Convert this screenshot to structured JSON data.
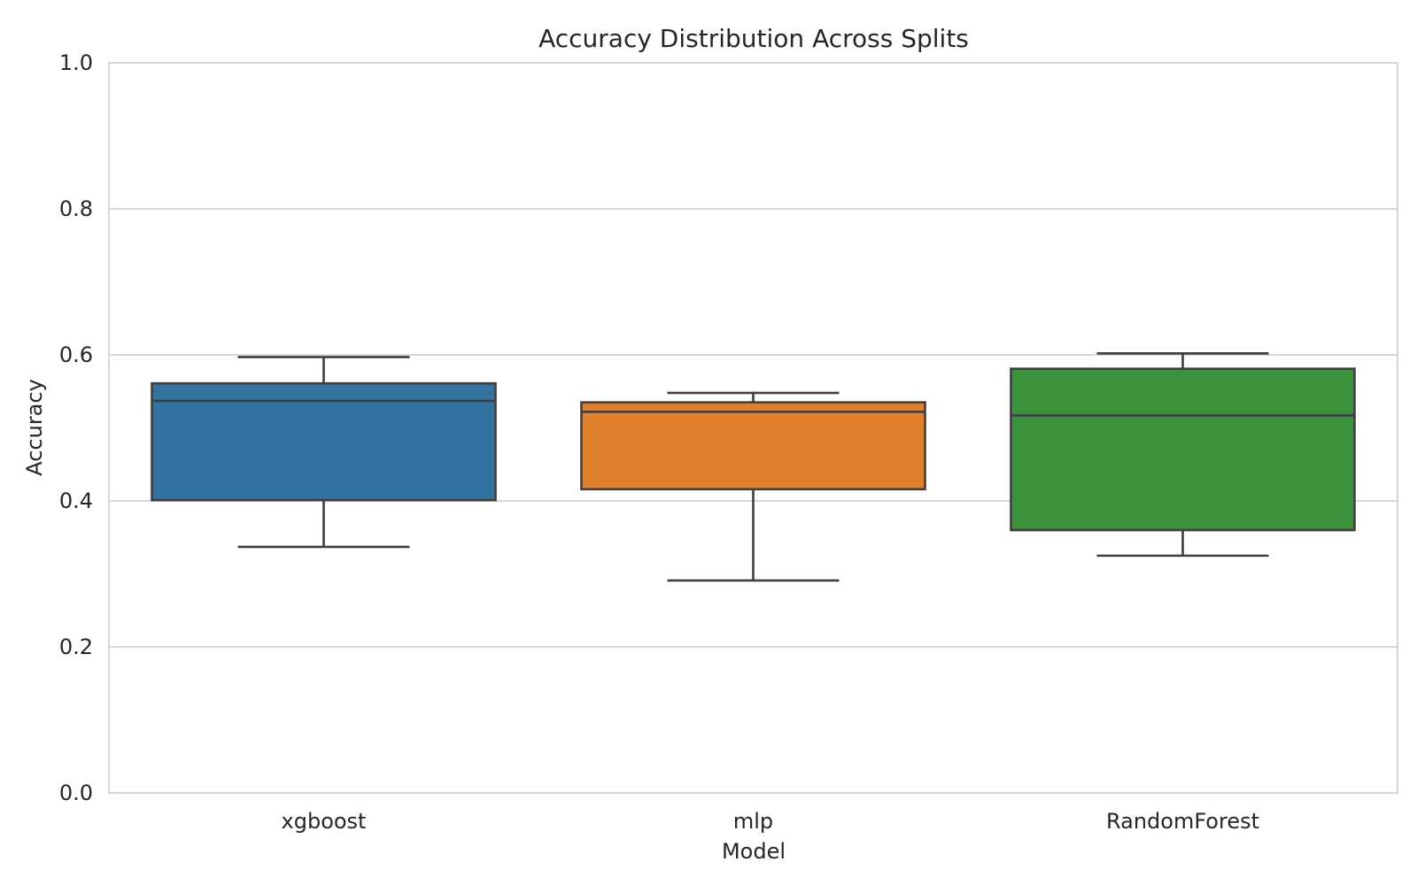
{
  "chart_data": {
    "type": "box",
    "title": "Accuracy Distribution Across Splits",
    "xlabel": "Model",
    "ylabel": "Accuracy",
    "ylim": [
      0,
      1
    ],
    "yticks": [
      "0.0",
      "0.2",
      "0.4",
      "0.6",
      "0.8",
      "1.0"
    ],
    "grid": "horizontal",
    "categories": [
      "xgboost",
      "mlp",
      "RandomForest"
    ],
    "series": [
      {
        "category": "xgboost",
        "color": "#3274a1",
        "whisker_low": 0.337,
        "q1": 0.401,
        "median": 0.537,
        "q3": 0.561,
        "whisker_high": 0.597
      },
      {
        "category": "mlp",
        "color": "#e1812c",
        "whisker_low": 0.291,
        "q1": 0.416,
        "median": 0.522,
        "q3": 0.535,
        "whisker_high": 0.548
      },
      {
        "category": "RandomForest",
        "color": "#3a923a",
        "whisker_low": 0.325,
        "q1": 0.36,
        "median": 0.517,
        "q3": 0.581,
        "whisker_high": 0.602
      }
    ]
  }
}
